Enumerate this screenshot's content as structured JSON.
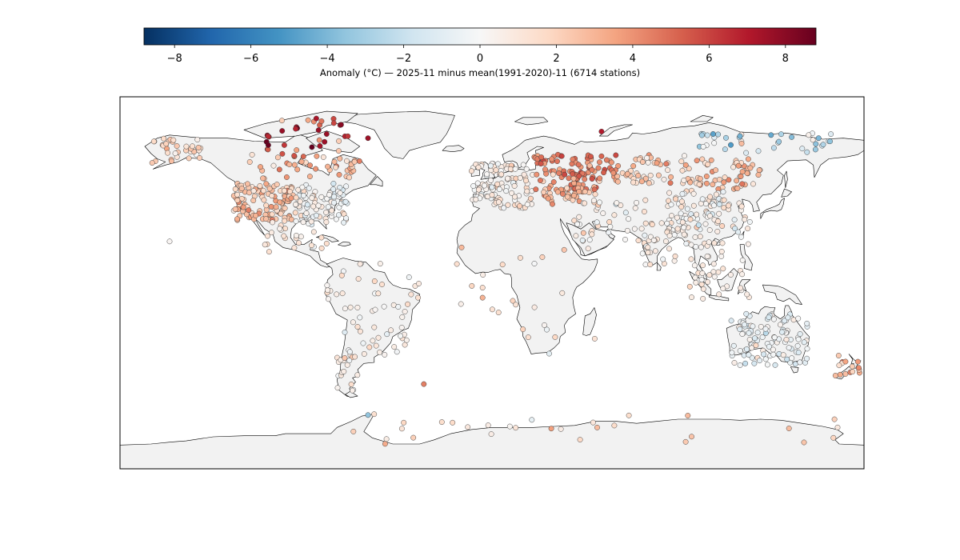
{
  "colorbar": {
    "label": "Anomaly (°C) — 2025-11 minus mean(1991-2020)-11 (6714 stations)",
    "min": -8.8,
    "max": 8.8,
    "ticks": [
      {
        "value": -8,
        "label": "−8"
      },
      {
        "value": -6,
        "label": "−6"
      },
      {
        "value": -4,
        "label": "−4"
      },
      {
        "value": -2,
        "label": "−2"
      },
      {
        "value": 0,
        "label": "0"
      },
      {
        "value": 2,
        "label": "2"
      },
      {
        "value": 4,
        "label": "4"
      },
      {
        "value": 6,
        "label": "6"
      },
      {
        "value": 8,
        "label": "8"
      }
    ],
    "colormap": [
      "#053061",
      "#2166ac",
      "#4393c3",
      "#92c5de",
      "#d1e5f0",
      "#f7f7f7",
      "#fddbc7",
      "#f4a582",
      "#d6604d",
      "#b2182b",
      "#67001f"
    ]
  },
  "map": {
    "projection": "plate-carree",
    "extent": {
      "lon": [
        -180,
        180
      ],
      "lat": [
        -90,
        90
      ]
    },
    "land_color": "#f2f2f2",
    "ocean_color": "#ffffff",
    "border_color": "#000000"
  },
  "chart_data": {
    "type": "scatter",
    "title": "",
    "xlabel": "",
    "ylabel": "",
    "xlim": [
      -180,
      180
    ],
    "ylim": [
      -90,
      90
    ],
    "value_units": "°C",
    "regions": [
      {
        "lon": [
          -125,
          -95
        ],
        "lat": [
          30,
          48
        ],
        "n": 120,
        "mean": 2.5,
        "sd": 0.9
      },
      {
        "lon": [
          -95,
          -70
        ],
        "lat": [
          28,
          48
        ],
        "n": 90,
        "mean": 0.2,
        "sd": 0.8
      },
      {
        "lon": [
          -165,
          -140
        ],
        "lat": [
          58,
          70
        ],
        "n": 35,
        "mean": 1.8,
        "sd": 0.8
      },
      {
        "lon": [
          -125,
          -60
        ],
        "lat": [
          50,
          62
        ],
        "n": 45,
        "mean": 3.2,
        "sd": 1.2
      },
      {
        "lon": [
          -110,
          -65
        ],
        "lat": [
          62,
          80
        ],
        "n": 30,
        "mean": 6.0,
        "sd": 2.0
      },
      {
        "lon": [
          -110,
          -82
        ],
        "lat": [
          15,
          30
        ],
        "n": 25,
        "mean": 1.0,
        "sd": 0.6
      },
      {
        "lon": [
          -80,
          -35
        ],
        "lat": [
          -10,
          10
        ],
        "n": 22,
        "mean": 0.9,
        "sd": 0.6
      },
      {
        "lon": [
          -72,
          -40
        ],
        "lat": [
          -35,
          -10
        ],
        "n": 38,
        "mean": 0.3,
        "sd": 0.7
      },
      {
        "lon": [
          -75,
          -65
        ],
        "lat": [
          -55,
          -35
        ],
        "n": 18,
        "mean": 1.2,
        "sd": 1.0
      },
      {
        "lon": [
          -10,
          20
        ],
        "lat": [
          36,
          58
        ],
        "n": 110,
        "mean": 0.8,
        "sd": 0.7
      },
      {
        "lon": [
          20,
          60
        ],
        "lat": [
          45,
          62
        ],
        "n": 110,
        "mean": 4.3,
        "sd": 1.0
      },
      {
        "lon": [
          25,
          50
        ],
        "lat": [
          38,
          46
        ],
        "n": 35,
        "mean": 2.8,
        "sd": 0.8
      },
      {
        "lon": [
          40,
          75
        ],
        "lat": [
          20,
          40
        ],
        "n": 35,
        "mean": 0.6,
        "sd": 0.8
      },
      {
        "lon": [
          60,
          100
        ],
        "lat": [
          48,
          62
        ],
        "n": 60,
        "mean": 2.0,
        "sd": 1.2
      },
      {
        "lon": [
          100,
          130
        ],
        "lat": [
          45,
          60
        ],
        "n": 50,
        "mean": 2.8,
        "sd": 1.0
      },
      {
        "lon": [
          100,
          165
        ],
        "lat": [
          62,
          73
        ],
        "n": 35,
        "mean": -1.5,
        "sd": 1.4
      },
      {
        "lon": [
          85,
          125
        ],
        "lat": [
          22,
          45
        ],
        "n": 100,
        "mean": 0.4,
        "sd": 0.9
      },
      {
        "lon": [
          68,
          95
        ],
        "lat": [
          8,
          30
        ],
        "n": 40,
        "mean": 0.8,
        "sd": 0.6
      },
      {
        "lon": [
          95,
          125
        ],
        "lat": [
          -8,
          20
        ],
        "n": 45,
        "mean": 0.6,
        "sd": 0.5
      },
      {
        "lon": [
          -18,
          50
        ],
        "lat": [
          -35,
          35
        ],
        "n": 30,
        "mean": 1.4,
        "sd": 0.9
      },
      {
        "lon": [
          115,
          153
        ],
        "lat": [
          -40,
          -15
        ],
        "n": 110,
        "mean": -0.4,
        "sd": 0.8
      },
      {
        "lon": [
          166,
          178
        ],
        "lat": [
          -46,
          -35
        ],
        "n": 15,
        "mean": 2.8,
        "sd": 0.8
      },
      {
        "lon": [
          -70,
          170
        ],
        "lat": [
          -78,
          -63
        ],
        "n": 30,
        "mean": 1.5,
        "sd": 1.0
      }
    ],
    "points": [
      {
        "lon": 53.0,
        "lat": 73.2,
        "value": 7.0
      },
      {
        "lon": -80.0,
        "lat": 72.0,
        "value": 7.6
      },
      {
        "lon": -95.0,
        "lat": 74.5,
        "value": 6.8
      },
      {
        "lon": -85.0,
        "lat": 79.5,
        "value": 7.2
      },
      {
        "lon": -73.0,
        "lat": 76.5,
        "value": 8.0
      },
      {
        "lon": -60.0,
        "lat": 70.0,
        "value": 7.5
      },
      {
        "lon": 107.0,
        "lat": 72.0,
        "value": -4.8
      },
      {
        "lon": 120.0,
        "lat": 71.0,
        "value": -4.2
      },
      {
        "lon": 135.0,
        "lat": 71.5,
        "value": -4.5
      },
      {
        "lon": 145.0,
        "lat": 70.5,
        "value": -3.8
      },
      {
        "lon": 158.0,
        "lat": 70.0,
        "value": -4.0
      },
      {
        "lon": -60.0,
        "lat": -64.0,
        "value": -3.5
      },
      {
        "lon": 100.0,
        "lat": 28.0,
        "value": -2.0
      },
      {
        "lon": 110.0,
        "lat": 38.0,
        "value": -1.5
      },
      {
        "lon": -33.0,
        "lat": -49.0,
        "value": 4.5
      },
      {
        "lon": -80.0,
        "lat": 19.0,
        "value": 1.5
      },
      {
        "lon": -156.0,
        "lat": 20.0,
        "value": 0.2
      }
    ]
  }
}
